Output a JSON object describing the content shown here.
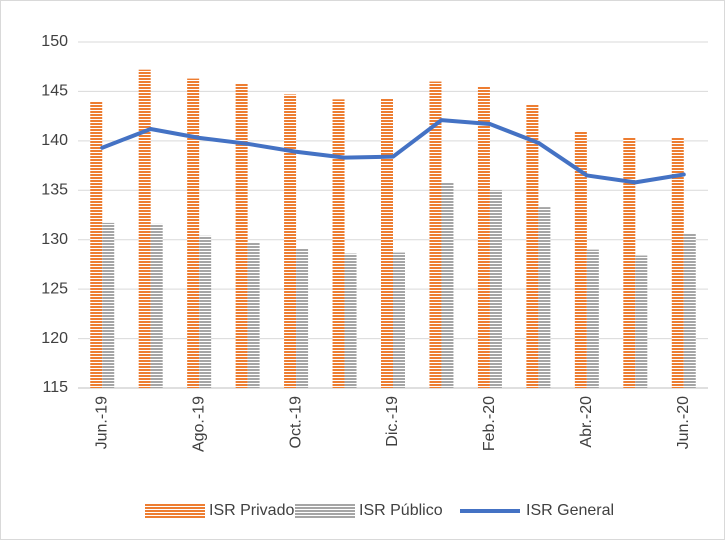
{
  "chart_data": {
    "type": "bar",
    "categories": [
      "Jun.-19",
      null,
      "Ago.-19",
      null,
      "Oct.-19",
      null,
      "Dic.-19",
      null,
      "Feb.-20",
      null,
      "Abr.-20",
      null,
      "Jun.-20"
    ],
    "series": [
      {
        "name": "ISR Privado",
        "type": "bar",
        "color": "#ed7d31",
        "values": [
          144.0,
          147.2,
          146.3,
          145.8,
          144.7,
          144.2,
          144.3,
          146.0,
          145.5,
          143.7,
          141.0,
          140.3,
          140.3
        ]
      },
      {
        "name": "ISR Público",
        "type": "bar",
        "color": "#a5a5a5",
        "values": [
          131.7,
          131.6,
          130.4,
          129.7,
          129.1,
          128.6,
          128.7,
          135.8,
          135.0,
          133.3,
          129.0,
          128.4,
          130.6
        ]
      },
      {
        "name": "ISR General",
        "type": "line",
        "color": "#4472c4",
        "values": [
          139.3,
          141.2,
          140.3,
          139.7,
          138.9,
          138.3,
          138.4,
          142.1,
          141.7,
          139.8,
          136.5,
          135.8,
          136.6
        ]
      }
    ],
    "ylim": [
      115,
      150
    ],
    "yticks": [
      115,
      120,
      125,
      130,
      135,
      140,
      145,
      150
    ],
    "grid": true,
    "legend": "bottom"
  }
}
